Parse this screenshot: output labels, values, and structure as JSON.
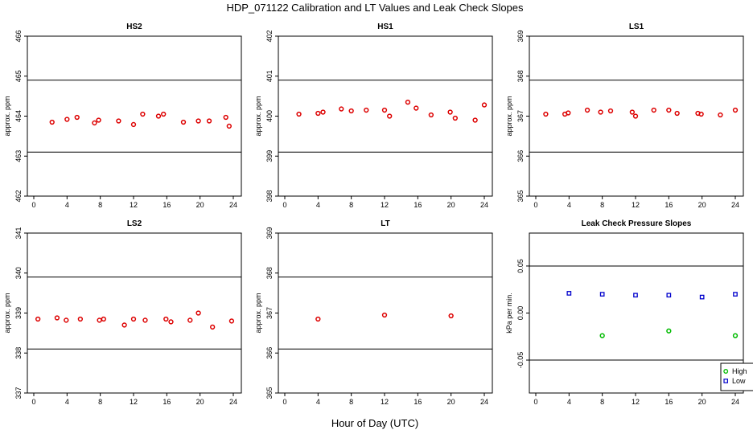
{
  "figure": {
    "title": "HDP_071122  Calibration and LT Values and Leak Check Slopes",
    "xlabel": "Hour of Day (UTC)"
  },
  "colors": {
    "points": "#dd0000",
    "high": "#00bb00",
    "low": "#0000cc"
  },
  "chart_data": [
    {
      "type": "scatter",
      "title": "HS2",
      "ylabel": "approx. ppm",
      "xlim": [
        0,
        24
      ],
      "ylim": [
        462,
        466
      ],
      "yticks": [
        462,
        463,
        464,
        465,
        466
      ],
      "hlines": [
        463.1,
        464.9
      ],
      "series": [
        {
          "color": "#dd0000",
          "x": [
            2.2,
            4.0,
            5.2,
            7.3,
            7.8,
            10.2,
            12.0,
            13.1,
            15.0,
            15.6,
            18.0,
            19.8,
            21.1,
            23.1,
            23.5
          ],
          "y": [
            463.85,
            463.92,
            463.97,
            463.83,
            463.9,
            463.88,
            463.79,
            464.05,
            464.0,
            464.05,
            463.85,
            463.88,
            463.88,
            463.97,
            463.75
          ]
        }
      ]
    },
    {
      "type": "scatter",
      "title": "HS1",
      "ylabel": "approx. ppm",
      "xlim": [
        0,
        24
      ],
      "ylim": [
        398,
        402
      ],
      "yticks": [
        398,
        399,
        400,
        401,
        402
      ],
      "hlines": [
        399.1,
        400.9
      ],
      "series": [
        {
          "color": "#dd0000",
          "x": [
            1.7,
            4.0,
            4.6,
            6.8,
            8.0,
            9.8,
            12.0,
            12.6,
            14.8,
            15.8,
            17.6,
            19.9,
            20.5,
            22.9,
            24.0
          ],
          "y": [
            400.05,
            400.07,
            400.1,
            400.18,
            400.13,
            400.15,
            400.15,
            400.0,
            400.35,
            400.2,
            400.03,
            400.1,
            399.95,
            399.9,
            400.28
          ]
        }
      ]
    },
    {
      "type": "scatter",
      "title": "LS1",
      "ylabel": "approx. ppm",
      "xlim": [
        0,
        24
      ],
      "ylim": [
        365,
        369
      ],
      "yticks": [
        365,
        366,
        367,
        368,
        369
      ],
      "hlines": [
        366.1,
        367.9
      ],
      "series": [
        {
          "color": "#dd0000",
          "x": [
            1.2,
            3.5,
            3.9,
            6.2,
            7.8,
            9.0,
            11.6,
            12.0,
            14.2,
            16.0,
            17.0,
            19.5,
            19.9,
            22.2,
            24.0
          ],
          "y": [
            367.05,
            367.05,
            367.08,
            367.15,
            367.1,
            367.13,
            367.1,
            367.0,
            367.15,
            367.15,
            367.07,
            367.07,
            367.05,
            367.03,
            367.15
          ]
        }
      ]
    },
    {
      "type": "scatter",
      "title": "LS2",
      "ylabel": "approx. ppm",
      "xlim": [
        0,
        24
      ],
      "ylim": [
        337,
        341
      ],
      "yticks": [
        337,
        338,
        339,
        340,
        341
      ],
      "hlines": [
        338.1,
        339.9
      ],
      "series": [
        {
          "color": "#dd0000",
          "x": [
            0.5,
            2.8,
            3.9,
            5.6,
            7.9,
            8.4,
            10.9,
            12.0,
            13.4,
            15.9,
            16.5,
            18.8,
            19.8,
            21.5,
            23.8
          ],
          "y": [
            338.85,
            338.88,
            338.82,
            338.85,
            338.82,
            338.85,
            338.7,
            338.85,
            338.82,
            338.85,
            338.78,
            338.82,
            339.0,
            338.65,
            338.8
          ]
        }
      ]
    },
    {
      "type": "scatter",
      "title": "LT",
      "ylabel": "approx. ppm",
      "xlim": [
        0,
        24
      ],
      "ylim": [
        365,
        369
      ],
      "yticks": [
        365,
        366,
        367,
        368,
        369
      ],
      "hlines": [
        366.1,
        367.9
      ],
      "series": [
        {
          "color": "#dd0000",
          "x": [
            4.0,
            12.0,
            20.0
          ],
          "y": [
            366.85,
            366.95,
            366.93
          ]
        }
      ]
    },
    {
      "type": "scatter",
      "title": "Leak Check Pressure Slopes",
      "ylabel": "kPa per min.",
      "xlim": [
        0,
        24
      ],
      "ylim": [
        -0.085,
        0.085
      ],
      "yticks": [
        -0.05,
        0.0,
        0.05
      ],
      "yticklabels": [
        "-0.05",
        "0.00",
        "0.05"
      ],
      "hlines": [
        -0.05,
        0.05
      ],
      "legend": {
        "position": "bottom-right",
        "entries": [
          "High",
          "Low"
        ]
      },
      "series": [
        {
          "name": "High",
          "color": "#00bb00",
          "marker": "circle",
          "x": [
            8.0,
            16.0,
            24.0
          ],
          "y": [
            -0.024,
            -0.019,
            -0.024
          ]
        },
        {
          "name": "Low",
          "color": "#0000cc",
          "marker": "square",
          "x": [
            4.0,
            8.0,
            12.0,
            16.0,
            20.0,
            24.0
          ],
          "y": [
            0.021,
            0.02,
            0.019,
            0.019,
            0.017,
            0.02
          ]
        }
      ]
    }
  ]
}
